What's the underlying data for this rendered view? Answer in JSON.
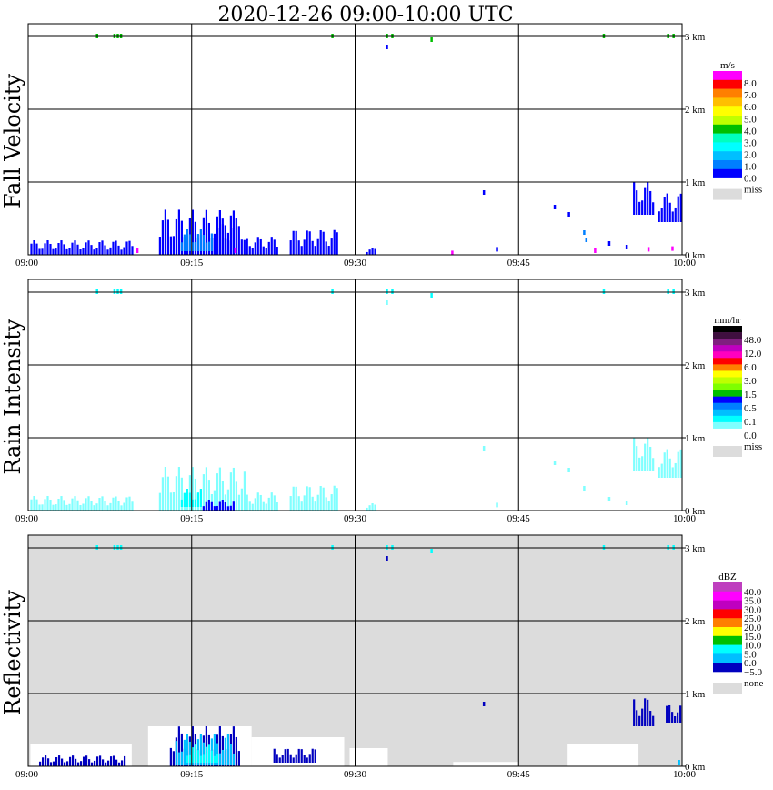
{
  "title": "2020-12-26   09:00-10:00 UTC",
  "time_ticks": [
    "09:00",
    "09:15",
    "09:30",
    "09:45",
    "10:00"
  ],
  "height_ticks": [
    "0 km",
    "1 km",
    "2 km",
    "3 km"
  ],
  "colors": {
    "grid": "#000000",
    "missing_fill": "#dcdcdc"
  },
  "chart_data": [
    {
      "type": "heatmap",
      "title": "Fall Velocity",
      "x_range": [
        "09:00",
        "10:00"
      ],
      "y_range_km": [
        0,
        3
      ],
      "colorbar": {
        "unit": "m/s",
        "labels": [
          "8.0",
          "7.0",
          "6.0",
          "5.0",
          "4.0",
          "3.0",
          "2.0",
          "1.0",
          "0.0"
        ],
        "colors": [
          "#ff00ff",
          "#ff0000",
          "#ff7f00",
          "#ffbf00",
          "#ffff00",
          "#bfff00",
          "#00bf00",
          "#00ffbf",
          "#00ffff",
          "#00bfff",
          "#007fff",
          "#0000ff"
        ],
        "missing_label": "miss"
      },
      "echo_regions": [
        {
          "t": [
            0.2,
            9.5
          ],
          "h": [
            0.0,
            0.2
          ],
          "c": 11
        },
        {
          "t": [
            12,
            19
          ],
          "h": [
            0.0,
            0.62
          ],
          "c": 11
        },
        {
          "t": [
            14,
            17
          ],
          "h": [
            0.05,
            0.35
          ],
          "c": 10
        },
        {
          "t": [
            17,
            20
          ],
          "h": [
            0.0,
            0.5
          ],
          "c": 11
        },
        {
          "t": [
            20,
            23
          ],
          "h": [
            0.0,
            0.25
          ],
          "c": 11
        },
        {
          "t": [
            24,
            28.5
          ],
          "h": [
            0.0,
            0.35
          ],
          "c": 11
        },
        {
          "t": [
            31,
            32
          ],
          "h": [
            0.0,
            0.1
          ],
          "c": 11
        },
        {
          "t": [
            55.5,
            57.5
          ],
          "h": [
            0.55,
            1.0
          ],
          "c": 11
        },
        {
          "t": [
            57.8,
            59.9
          ],
          "h": [
            0.45,
            0.85
          ],
          "c": 11
        }
      ],
      "echo_specks": [
        {
          "t": 6.3,
          "h": 3.0,
          "c": 6
        },
        {
          "t": 7.9,
          "h": 3.0,
          "c": 6
        },
        {
          "t": 8.2,
          "h": 3.0,
          "c": 6
        },
        {
          "t": 8.5,
          "h": 3.0,
          "c": 6
        },
        {
          "t": 27.9,
          "h": 3.0,
          "c": 6
        },
        {
          "t": 32.9,
          "h": 3.0,
          "c": 6
        },
        {
          "t": 33.4,
          "h": 3.0,
          "c": 6
        },
        {
          "t": 37.0,
          "h": 2.95,
          "c": 6
        },
        {
          "t": 52.8,
          "h": 3.0,
          "c": 6
        },
        {
          "t": 58.7,
          "h": 3.0,
          "c": 6
        },
        {
          "t": 59.2,
          "h": 3.0,
          "c": 6
        },
        {
          "t": 32.9,
          "h": 2.85,
          "c": 11
        },
        {
          "t": 41.8,
          "h": 0.85,
          "c": 11
        },
        {
          "t": 48.3,
          "h": 0.65,
          "c": 11
        },
        {
          "t": 49.6,
          "h": 0.55,
          "c": 11
        },
        {
          "t": 51.0,
          "h": 0.3,
          "c": 10
        },
        {
          "t": 51.2,
          "h": 0.2,
          "c": 10
        },
        {
          "t": 53.3,
          "h": 0.15,
          "c": 11
        },
        {
          "t": 54.9,
          "h": 0.1,
          "c": 11
        },
        {
          "t": 43.0,
          "h": 0.07,
          "c": 11
        },
        {
          "t": 10.0,
          "h": 0.05,
          "c": 0
        },
        {
          "t": 19.0,
          "h": 0.05,
          "c": 0
        },
        {
          "t": 38.9,
          "h": 0.02,
          "c": 0
        },
        {
          "t": 52.0,
          "h": 0.05,
          "c": 0
        },
        {
          "t": 56.9,
          "h": 0.07,
          "c": 0
        },
        {
          "t": 59.1,
          "h": 0.08,
          "c": 0
        }
      ]
    },
    {
      "type": "heatmap",
      "title": "Rain Intensity",
      "x_range": [
        "09:00",
        "10:00"
      ],
      "y_range_km": [
        0,
        3
      ],
      "colorbar": {
        "unit": "mm/hr",
        "labels": [
          "48.0",
          "12.0",
          "6.0",
          "3.0",
          "1.5",
          "0.5",
          "0.1",
          "0.0"
        ],
        "colors": [
          "#000000",
          "#3f0f3f",
          "#7f1f7f",
          "#bf00bf",
          "#ff00bf",
          "#ff0000",
          "#ff7f00",
          "#ffff00",
          "#bfff00",
          "#7fff00",
          "#00bf00",
          "#0000ff",
          "#007fff",
          "#00bfff",
          "#00ffff",
          "#7fffff",
          "#ffffff"
        ],
        "missing_label": "miss"
      },
      "echo_regions": [
        {
          "t": [
            0.2,
            9.5
          ],
          "h": [
            0.0,
            0.2
          ],
          "c": 15
        },
        {
          "t": [
            12,
            20
          ],
          "h": [
            0.0,
            0.6
          ],
          "c": 15
        },
        {
          "t": [
            14,
            16
          ],
          "h": [
            0.05,
            0.3
          ],
          "c": 14
        },
        {
          "t": [
            16,
            19
          ],
          "h": [
            0.0,
            0.15
          ],
          "c": 11
        },
        {
          "t": [
            20,
            23
          ],
          "h": [
            0.0,
            0.25
          ],
          "c": 15
        },
        {
          "t": [
            24,
            28.5
          ],
          "h": [
            0.0,
            0.35
          ],
          "c": 15
        },
        {
          "t": [
            31,
            32
          ],
          "h": [
            0.0,
            0.1
          ],
          "c": 15
        },
        {
          "t": [
            55.5,
            57.5
          ],
          "h": [
            0.55,
            1.0
          ],
          "c": 15
        },
        {
          "t": [
            57.8,
            59.9
          ],
          "h": [
            0.45,
            0.85
          ],
          "c": 15
        }
      ],
      "echo_specks": [
        {
          "t": 6.3,
          "h": 3.0,
          "c": 14
        },
        {
          "t": 7.9,
          "h": 3.0,
          "c": 14
        },
        {
          "t": 8.2,
          "h": 3.0,
          "c": 14
        },
        {
          "t": 8.5,
          "h": 3.0,
          "c": 14
        },
        {
          "t": 27.9,
          "h": 3.0,
          "c": 14
        },
        {
          "t": 32.9,
          "h": 3.0,
          "c": 14
        },
        {
          "t": 33.4,
          "h": 3.0,
          "c": 14
        },
        {
          "t": 37.0,
          "h": 2.95,
          "c": 14
        },
        {
          "t": 52.8,
          "h": 3.0,
          "c": 14
        },
        {
          "t": 58.7,
          "h": 3.0,
          "c": 14
        },
        {
          "t": 59.2,
          "h": 3.0,
          "c": 14
        },
        {
          "t": 32.9,
          "h": 2.85,
          "c": 15
        },
        {
          "t": 41.8,
          "h": 0.85,
          "c": 15
        },
        {
          "t": 48.3,
          "h": 0.65,
          "c": 15
        },
        {
          "t": 49.6,
          "h": 0.55,
          "c": 15
        },
        {
          "t": 51.0,
          "h": 0.3,
          "c": 15
        },
        {
          "t": 53.3,
          "h": 0.15,
          "c": 15
        },
        {
          "t": 54.9,
          "h": 0.1,
          "c": 15
        },
        {
          "t": 43.0,
          "h": 0.07,
          "c": 15
        }
      ]
    },
    {
      "type": "heatmap",
      "title": "Reflectivity",
      "x_range": [
        "09:00",
        "10:00"
      ],
      "y_range_km": [
        0,
        3
      ],
      "colorbar": {
        "unit": "dBZ",
        "labels": [
          "40.0",
          "35.0",
          "30.0",
          "25.0",
          "20.0",
          "15.0",
          "10.0",
          "5.0",
          "0.0",
          "−5.0"
        ],
        "colors": [
          "#bf3fbf",
          "#ff00ff",
          "#bf00bf",
          "#ff0000",
          "#ff7f00",
          "#ffff00",
          "#00bf00",
          "#00ffff",
          "#00bfff",
          "#0000bf"
        ],
        "missing_label": "none"
      },
      "background": "#dcdcdc",
      "clear_regions": [
        {
          "t": [
            0.2,
            9.5
          ],
          "h": [
            0.0,
            0.3
          ]
        },
        {
          "t": [
            11,
            20.5
          ],
          "h": [
            0.0,
            0.55
          ]
        },
        {
          "t": [
            20.5,
            29
          ],
          "h": [
            0.0,
            0.4
          ]
        },
        {
          "t": [
            29.5,
            33
          ],
          "h": [
            0.0,
            0.25
          ]
        },
        {
          "t": [
            39,
            45
          ],
          "h": [
            0.0,
            0.06
          ]
        },
        {
          "t": [
            49.5,
            56
          ],
          "h": [
            0.0,
            0.3
          ]
        }
      ],
      "echo_regions": [
        {
          "t": [
            1.0,
            9.0
          ],
          "h": [
            0.0,
            0.15
          ],
          "c": 9
        },
        {
          "t": [
            13,
            19.5
          ],
          "h": [
            0.0,
            0.55
          ],
          "c": 9
        },
        {
          "t": [
            13.5,
            19
          ],
          "h": [
            0.02,
            0.45
          ],
          "c": 8
        },
        {
          "t": [
            14.5,
            17.5
          ],
          "h": [
            0.05,
            0.3
          ],
          "c": 7
        },
        {
          "t": [
            22.5,
            26.5
          ],
          "h": [
            0.05,
            0.25
          ],
          "c": 9
        },
        {
          "t": [
            55.5,
            57.5
          ],
          "h": [
            0.55,
            0.95
          ],
          "c": 9
        },
        {
          "t": [
            58.5,
            59.8
          ],
          "h": [
            0.6,
            0.85
          ],
          "c": 9
        }
      ],
      "echo_specks": [
        {
          "t": 6.3,
          "h": 3.0,
          "c": 7
        },
        {
          "t": 7.9,
          "h": 3.0,
          "c": 7
        },
        {
          "t": 8.2,
          "h": 3.0,
          "c": 7
        },
        {
          "t": 8.5,
          "h": 3.0,
          "c": 7
        },
        {
          "t": 27.9,
          "h": 3.0,
          "c": 7
        },
        {
          "t": 32.9,
          "h": 3.0,
          "c": 7
        },
        {
          "t": 33.4,
          "h": 3.0,
          "c": 7
        },
        {
          "t": 37.0,
          "h": 2.95,
          "c": 7
        },
        {
          "t": 52.8,
          "h": 3.0,
          "c": 7
        },
        {
          "t": 58.7,
          "h": 3.0,
          "c": 7
        },
        {
          "t": 59.2,
          "h": 3.0,
          "c": 7
        },
        {
          "t": 32.9,
          "h": 2.85,
          "c": 9
        },
        {
          "t": 41.8,
          "h": 0.85,
          "c": 9
        },
        {
          "t": 59.7,
          "h": 0.05,
          "c": 8
        }
      ]
    }
  ]
}
